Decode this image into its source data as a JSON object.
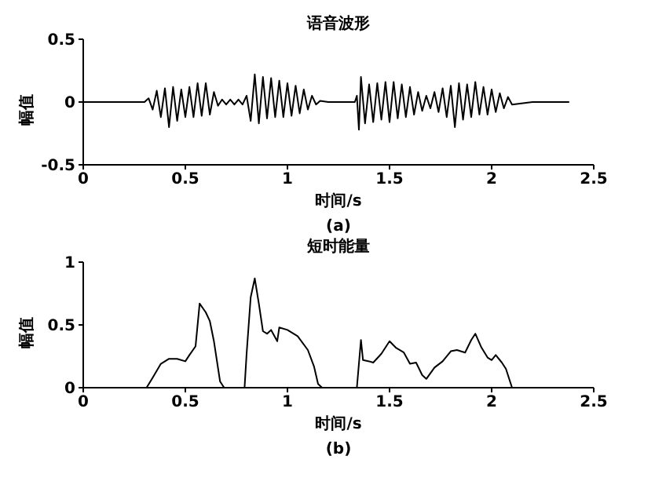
{
  "chart_data": [
    {
      "type": "line",
      "title": "语音波形",
      "xlabel": "时间/s",
      "ylabel": "幅值",
      "annotations": [
        "(a)"
      ],
      "xlim": [
        0,
        2.5
      ],
      "xticks": [
        0,
        0.5,
        1,
        1.5,
        2,
        2.5
      ],
      "ylim": [
        -0.5,
        0.5
      ],
      "yticks": [
        -0.5,
        0,
        0.5
      ],
      "grid": false,
      "legend": false,
      "marker": "none",
      "line_style": "solid",
      "series": [
        {
          "color": "#000000",
          "x": [
            0,
            0.3,
            0.32,
            0.34,
            0.36,
            0.38,
            0.4,
            0.42,
            0.44,
            0.46,
            0.48,
            0.5,
            0.52,
            0.54,
            0.56,
            0.58,
            0.6,
            0.62,
            0.64,
            0.66,
            0.68,
            0.7,
            0.72,
            0.74,
            0.76,
            0.78,
            0.8,
            0.82,
            0.84,
            0.86,
            0.88,
            0.9,
            0.92,
            0.94,
            0.96,
            0.98,
            1,
            1.02,
            1.04,
            1.06,
            1.08,
            1.1,
            1.12,
            1.14,
            1.16,
            1.2,
            1.33,
            1.34,
            1.35,
            1.36,
            1.38,
            1.4,
            1.42,
            1.44,
            1.46,
            1.48,
            1.5,
            1.52,
            1.54,
            1.56,
            1.58,
            1.6,
            1.62,
            1.64,
            1.66,
            1.68,
            1.7,
            1.72,
            1.74,
            1.76,
            1.78,
            1.8,
            1.82,
            1.84,
            1.86,
            1.88,
            1.9,
            1.92,
            1.94,
            1.96,
            1.98,
            2,
            2.02,
            2.04,
            2.06,
            2.08,
            2.1,
            2.2,
            2.38
          ],
          "values": [
            0,
            0,
            0.03,
            -0.06,
            0.09,
            -0.12,
            0.11,
            -0.2,
            0.12,
            -0.15,
            0.1,
            -0.12,
            0.12,
            -0.12,
            0.15,
            -0.11,
            0.15,
            -0.1,
            0.08,
            -0.03,
            0.02,
            -0.02,
            0.02,
            -0.02,
            0.02,
            -0.02,
            0.05,
            -0.15,
            0.22,
            -0.17,
            0.2,
            -0.13,
            0.19,
            -0.12,
            0.17,
            -0.12,
            0.15,
            -0.11,
            0.13,
            -0.09,
            0.1,
            -0.06,
            0.05,
            -0.02,
            0.01,
            0,
            0,
            0.05,
            -0.22,
            0.2,
            -0.17,
            0.14,
            -0.16,
            0.15,
            -0.14,
            0.16,
            -0.16,
            0.16,
            -0.13,
            0.14,
            -0.12,
            0.12,
            -0.1,
            0.08,
            -0.07,
            0.05,
            -0.05,
            0.08,
            -0.08,
            0.11,
            -0.12,
            0.13,
            -0.2,
            0.15,
            -0.14,
            0.14,
            -0.12,
            0.16,
            -0.1,
            0.12,
            -0.1,
            0.1,
            -0.08,
            0.07,
            -0.05,
            0.04,
            -0.02,
            0,
            0
          ]
        }
      ]
    },
    {
      "type": "line",
      "title": "短时能量",
      "xlabel": "时间/s",
      "ylabel": "幅值",
      "annotations": [
        "(b)"
      ],
      "xlim": [
        0,
        2.5
      ],
      "xticks": [
        0,
        0.5,
        1,
        1.5,
        2,
        2.5
      ],
      "ylim": [
        0,
        1
      ],
      "yticks": [
        0,
        0.5,
        1
      ],
      "grid": false,
      "legend": false,
      "marker": "none",
      "line_style": "solid",
      "series": [
        {
          "color": "#000000",
          "x": [
            0,
            0.31,
            0.34,
            0.38,
            0.42,
            0.46,
            0.5,
            0.52,
            0.55,
            0.57,
            0.6,
            0.62,
            0.64,
            0.67,
            0.69,
            0.79,
            0.8,
            0.82,
            0.84,
            0.86,
            0.88,
            0.9,
            0.92,
            0.95,
            0.96,
            1,
            1.05,
            1.1,
            1.13,
            1.15,
            1.17,
            1.34,
            1.36,
            1.37,
            1.4,
            1.42,
            1.46,
            1.5,
            1.53,
            1.57,
            1.6,
            1.63,
            1.66,
            1.68,
            1.72,
            1.76,
            1.8,
            1.83,
            1.87,
            1.9,
            1.92,
            1.95,
            1.98,
            2,
            2.02,
            2.05,
            2.07,
            2.1,
            2.38
          ],
          "values": [
            0,
            0,
            0.08,
            0.19,
            0.23,
            0.23,
            0.21,
            0.26,
            0.33,
            0.67,
            0.6,
            0.53,
            0.37,
            0.05,
            0,
            0,
            0.27,
            0.72,
            0.87,
            0.67,
            0.45,
            0.43,
            0.46,
            0.37,
            0.48,
            0.46,
            0.41,
            0.3,
            0.17,
            0.03,
            0,
            0,
            0.38,
            0.22,
            0.21,
            0.2,
            0.27,
            0.37,
            0.32,
            0.28,
            0.19,
            0.2,
            0.1,
            0.07,
            0.16,
            0.21,
            0.29,
            0.3,
            0.28,
            0.38,
            0.43,
            0.32,
            0.24,
            0.22,
            0.26,
            0.2,
            0.15,
            0,
            0
          ]
        }
      ]
    }
  ]
}
